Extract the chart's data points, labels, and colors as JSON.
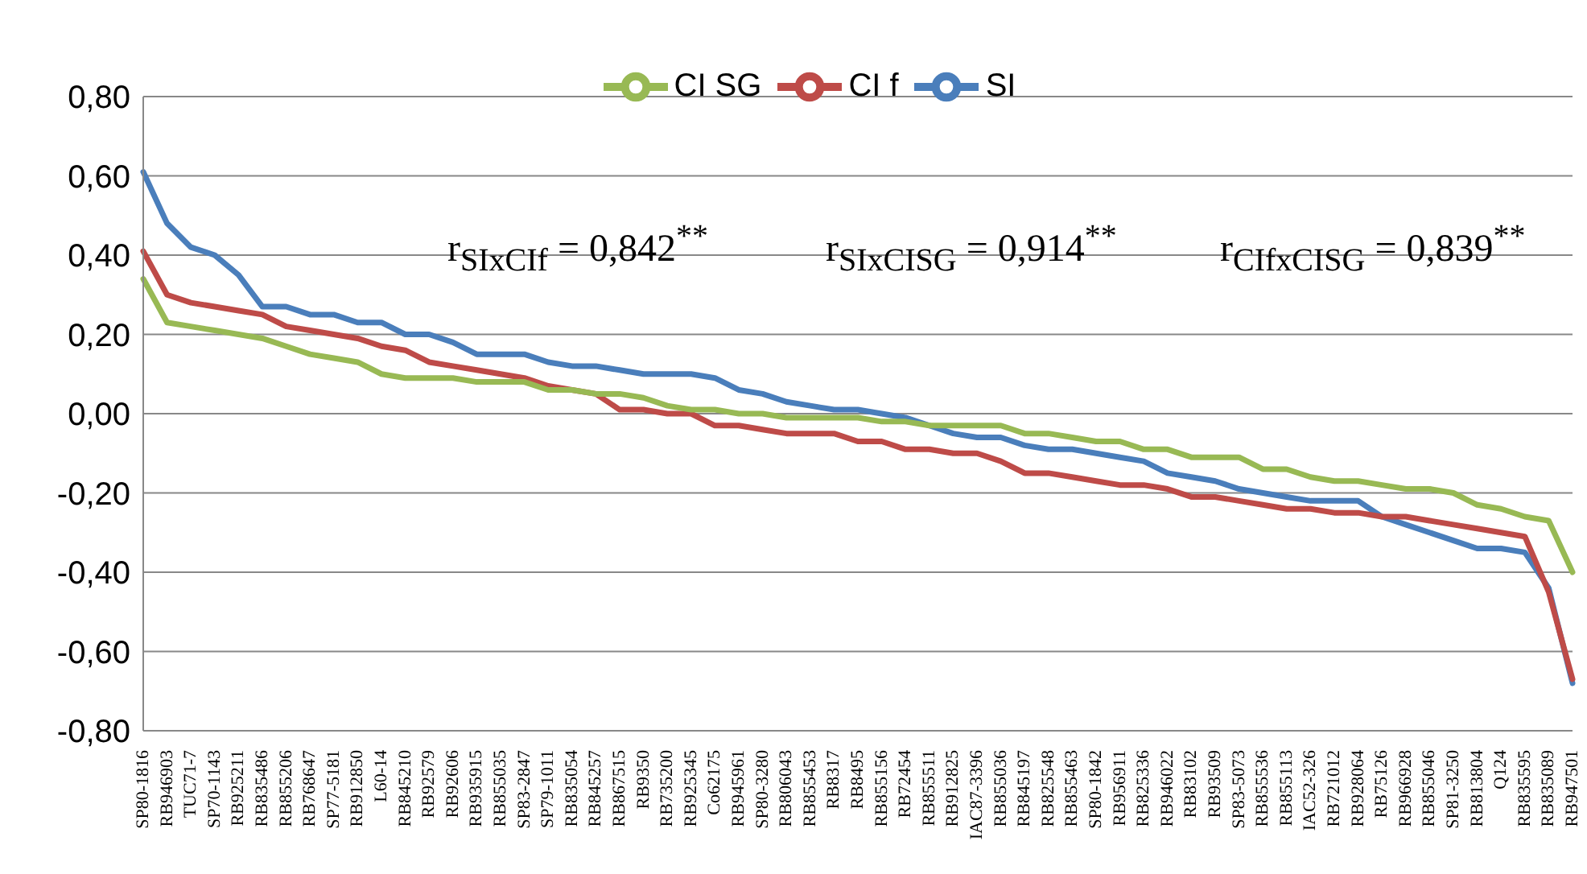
{
  "chart_data": {
    "type": "line",
    "categories": [
      "SP80-1816",
      "RB946903",
      "TUC71-7",
      "SP70-1143",
      "RB925211",
      "RB835486",
      "RB855206",
      "RB768647",
      "SP77-5181",
      "RB912850",
      "L60-14",
      "RB845210",
      "RB92579",
      "RB92606",
      "RB935915",
      "RB855035",
      "SP83-2847",
      "SP79-1011",
      "RB835054",
      "RB845257",
      "RB867515",
      "RB9350",
      "RB735200",
      "RB925345",
      "Co62175",
      "RB945961",
      "SP80-3280",
      "RB806043",
      "RB855453",
      "RB8317",
      "RB8495",
      "RB855156",
      "RB72454",
      "RB855511",
      "RB912825",
      "IAC87-3396",
      "RB855036",
      "RB845197",
      "RB825548",
      "RB855463",
      "SP80-1842",
      "RB956911",
      "RB825336",
      "RB946022",
      "RB83102",
      "RB93509",
      "SP83-5073",
      "RB855536",
      "RB855113",
      "IAC52-326",
      "RB721012",
      "RB928064",
      "RB75126",
      "RB966928",
      "RB855046",
      "SP81-3250",
      "RB813804",
      "Q124",
      "RB835595",
      "RB835089",
      "RB947501"
    ],
    "series": [
      {
        "name": "SI",
        "color": "#4a7ebb",
        "values": [
          0.61,
          0.48,
          0.42,
          0.4,
          0.35,
          0.27,
          0.27,
          0.25,
          0.25,
          0.23,
          0.23,
          0.2,
          0.2,
          0.18,
          0.15,
          0.15,
          0.15,
          0.13,
          0.12,
          0.12,
          0.11,
          0.1,
          0.1,
          0.1,
          0.09,
          0.06,
          0.05,
          0.03,
          0.02,
          0.01,
          0.01,
          0,
          -0.01,
          -0.03,
          -0.05,
          -0.06,
          -0.06,
          -0.08,
          -0.09,
          -0.09,
          -0.1,
          -0.11,
          -0.12,
          -0.15,
          -0.16,
          -0.17,
          -0.19,
          -0.2,
          -0.21,
          -0.22,
          -0.22,
          -0.22,
          -0.26,
          -0.28,
          -0.3,
          -0.32,
          -0.34,
          -0.34,
          -0.35,
          -0.44,
          -0.68
        ]
      },
      {
        "name": "CI f",
        "color": "#be4b48",
        "values": [
          0.41,
          0.3,
          0.28,
          0.27,
          0.26,
          0.25,
          0.22,
          0.21,
          0.2,
          0.19,
          0.17,
          0.16,
          0.13,
          0.12,
          0.11,
          0.1,
          0.09,
          0.07,
          0.06,
          0.05,
          0.01,
          0.01,
          0,
          0,
          -0.03,
          -0.03,
          -0.04,
          -0.05,
          -0.05,
          -0.05,
          -0.07,
          -0.07,
          -0.09,
          -0.09,
          -0.1,
          -0.1,
          -0.12,
          -0.15,
          -0.15,
          -0.16,
          -0.17,
          -0.18,
          -0.18,
          -0.19,
          -0.21,
          -0.21,
          -0.22,
          -0.23,
          -0.24,
          -0.24,
          -0.25,
          -0.25,
          -0.26,
          -0.26,
          -0.27,
          -0.28,
          -0.29,
          -0.3,
          -0.31,
          -0.45,
          -0.67
        ]
      },
      {
        "name": "CI SG",
        "color": "#98b954",
        "values": [
          0.34,
          0.23,
          0.22,
          0.21,
          0.2,
          0.19,
          0.17,
          0.15,
          0.14,
          0.13,
          0.1,
          0.09,
          0.09,
          0.09,
          0.08,
          0.08,
          0.08,
          0.06,
          0.06,
          0.05,
          0.05,
          0.04,
          0.02,
          0.01,
          0.01,
          0,
          0,
          -0.01,
          -0.01,
          -0.01,
          -0.01,
          -0.02,
          -0.02,
          -0.03,
          -0.03,
          -0.03,
          -0.03,
          -0.05,
          -0.05,
          -0.06,
          -0.07,
          -0.07,
          -0.09,
          -0.09,
          -0.11,
          -0.11,
          -0.11,
          -0.14,
          -0.14,
          -0.16,
          -0.17,
          -0.17,
          -0.18,
          -0.19,
          -0.19,
          -0.2,
          -0.23,
          -0.24,
          -0.26,
          -0.27,
          -0.4
        ]
      }
    ],
    "ylim": [
      -0.8,
      0.8
    ],
    "yticks": [
      {
        "value": -0.8,
        "label": "-0,80"
      },
      {
        "value": -0.6,
        "label": "-0,60"
      },
      {
        "value": -0.4,
        "label": "-0,40"
      },
      {
        "value": -0.2,
        "label": "-0,20"
      },
      {
        "value": 0,
        "label": "0,00"
      },
      {
        "value": 0.2,
        "label": "0,20"
      },
      {
        "value": 0.4,
        "label": "0,40"
      },
      {
        "value": 0.6,
        "label": "0,60"
      },
      {
        "value": 0.8,
        "label": "0,80"
      }
    ],
    "grid": "y",
    "legend": "top",
    "marker": "none",
    "line_style": "solid",
    "annotations": [
      "r$_{SIxCIf}$ = 0,842$^{**}$",
      "r$_{SIxCISG}$ = 0,914$^{**}$",
      "r$_{CIfxCISG}$ = 0,839$^{**}$"
    ]
  }
}
